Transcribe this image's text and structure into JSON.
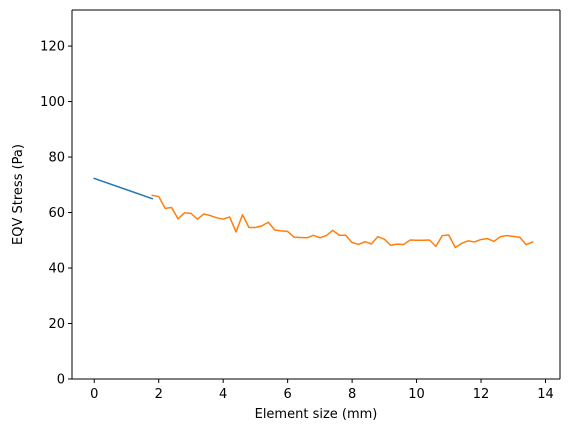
{
  "chart_data": {
    "type": "line",
    "xlabel": "Element size (mm)",
    "ylabel": "EQV Stress (Pa)",
    "xlim": [
      -0.69,
      14.45
    ],
    "ylim": [
      0,
      133
    ],
    "xticks": [
      0,
      2,
      4,
      6,
      8,
      10,
      12,
      14
    ],
    "yticks": [
      0,
      20,
      40,
      60,
      80,
      100,
      120
    ],
    "grid": false,
    "series": [
      {
        "color": "#1f77b4",
        "x": [
          0,
          1.8
        ],
        "y": [
          72.3,
          65.0
        ]
      },
      {
        "color": "#ff7f0e",
        "x": [
          1.8,
          2.0,
          2.2,
          2.4,
          2.6,
          2.8,
          3.0,
          3.2,
          3.4,
          3.6,
          3.8,
          4.0,
          4.2,
          4.4,
          4.6,
          4.8,
          5.0,
          5.2,
          5.4,
          5.6,
          5.8,
          6.0,
          6.2,
          6.4,
          6.6,
          6.8,
          7.0,
          7.2,
          7.4,
          7.6,
          7.8,
          8.0,
          8.2,
          8.4,
          8.6,
          8.8,
          9.0,
          9.2,
          9.4,
          9.6,
          9.8,
          10.0,
          10.2,
          10.4,
          10.6,
          10.8,
          11.0,
          11.2,
          11.4,
          11.6,
          11.8,
          12.0,
          12.2,
          12.4,
          12.6,
          12.8,
          13.0,
          13.2,
          13.4,
          13.6
        ],
        "y": [
          66.2,
          65.8,
          61.5,
          61.8,
          57.7,
          59.9,
          59.7,
          57.6,
          59.5,
          58.9,
          58.1,
          57.6,
          58.4,
          53.0,
          59.2,
          54.6,
          54.6,
          55.2,
          56.5,
          53.7,
          53.4,
          53.2,
          51.1,
          51.0,
          50.9,
          51.8,
          50.9,
          51.7,
          53.6,
          51.8,
          51.8,
          49.2,
          48.5,
          49.5,
          48.7,
          51.3,
          50.4,
          48.2,
          48.6,
          48.5,
          50.1,
          50.0,
          50.0,
          50.1,
          47.8,
          51.7,
          51.9,
          47.4,
          48.9,
          49.8,
          49.4,
          50.3,
          50.6,
          49.6,
          51.3,
          51.7,
          51.4,
          51.1,
          48.4,
          49.4
        ]
      }
    ]
  }
}
